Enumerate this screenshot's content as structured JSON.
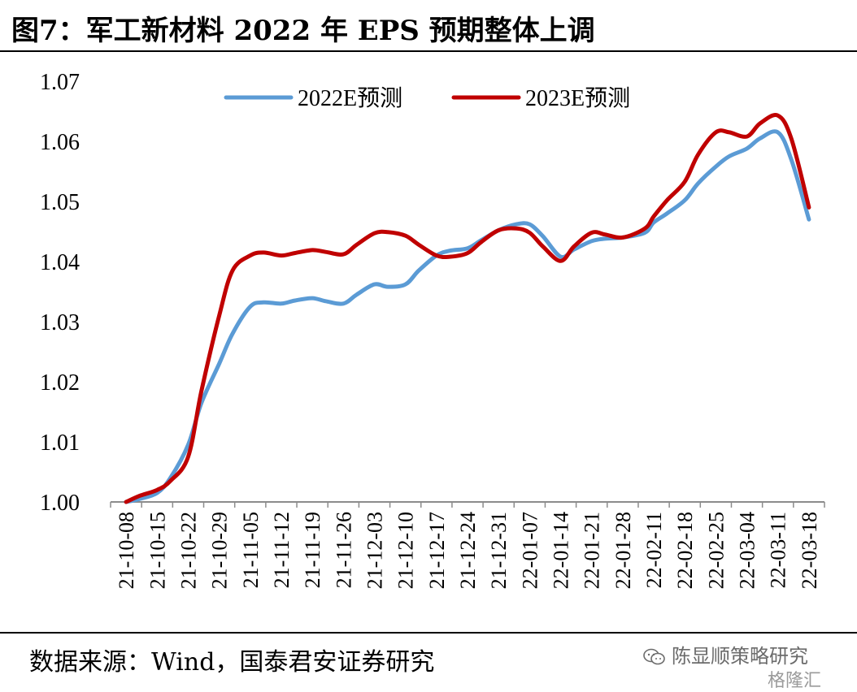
{
  "title": "图7：军工新材料 2022 年 EPS 预期整体上调",
  "source": "数据来源：Wind，国泰君安证券研究",
  "watermark": {
    "account": "陈显顺策略研究",
    "brand": "格隆汇",
    "icon": "wechat-icon"
  },
  "colors": {
    "series_2022": "#5B9BD5",
    "series_2023": "#C00000"
  },
  "chart_data": {
    "type": "line",
    "ylim": [
      1.0,
      1.07
    ],
    "yticks": [
      "1.00",
      "1.01",
      "1.02",
      "1.03",
      "1.04",
      "1.05",
      "1.06",
      "1.07"
    ],
    "x_tick_labels": [
      "21-10-08",
      "21-10-15",
      "21-10-22",
      "21-10-29",
      "21-11-05",
      "21-11-12",
      "21-11-19",
      "21-11-26",
      "21-12-03",
      "21-12-10",
      "21-12-17",
      "21-12-24",
      "21-12-31",
      "22-01-07",
      "22-01-14",
      "22-01-21",
      "22-01-28",
      "22-02-11",
      "22-02-18",
      "22-02-25",
      "22-03-04",
      "22-03-11",
      "22-03-18"
    ],
    "legend_position": "top",
    "grid": false,
    "series": [
      {
        "name": "2022E预测",
        "color": "#5B9BD5",
        "x": [
          "21-10-08",
          "21-10-11",
          "21-10-15",
          "21-10-18",
          "21-10-22",
          "21-10-25",
          "21-10-29",
          "21-11-01",
          "21-11-05",
          "21-11-08",
          "21-11-12",
          "21-11-15",
          "21-11-19",
          "21-11-22",
          "21-11-26",
          "21-11-29",
          "21-12-03",
          "21-12-06",
          "21-12-10",
          "21-12-13",
          "21-12-17",
          "21-12-20",
          "21-12-24",
          "21-12-27",
          "21-12-31",
          "22-01-04",
          "22-01-07",
          "22-01-10",
          "22-01-14",
          "22-01-17",
          "22-01-21",
          "22-01-24",
          "22-01-28",
          "22-02-07",
          "22-02-11",
          "22-02-14",
          "22-02-18",
          "22-02-21",
          "22-02-25",
          "22-02-28",
          "22-03-04",
          "22-03-07",
          "22-03-11",
          "22-03-14",
          "22-03-18"
        ],
        "values": [
          1.0,
          1.0005,
          1.0015,
          1.004,
          1.0095,
          1.0165,
          1.023,
          1.028,
          1.0325,
          1.0332,
          1.033,
          1.0335,
          1.0339,
          1.0334,
          1.033,
          1.0345,
          1.0362,
          1.0358,
          1.0362,
          1.0385,
          1.041,
          1.0418,
          1.0422,
          1.0435,
          1.0452,
          1.0462,
          1.0462,
          1.0442,
          1.0408,
          1.042,
          1.0434,
          1.0438,
          1.044,
          1.0448,
          1.0465,
          1.048,
          1.0502,
          1.053,
          1.0558,
          1.0575,
          1.0588,
          1.0605,
          1.0615,
          1.057,
          1.047
        ]
      },
      {
        "name": "2023E预测",
        "color": "#C00000",
        "x": [
          "21-10-08",
          "21-10-11",
          "21-10-15",
          "21-10-18",
          "21-10-22",
          "21-10-25",
          "21-10-29",
          "21-11-01",
          "21-11-05",
          "21-11-08",
          "21-11-12",
          "21-11-15",
          "21-11-19",
          "21-11-22",
          "21-11-26",
          "21-11-29",
          "21-12-03",
          "21-12-06",
          "21-12-10",
          "21-12-13",
          "21-12-17",
          "21-12-20",
          "21-12-24",
          "21-12-27",
          "21-12-31",
          "22-01-04",
          "22-01-07",
          "22-01-10",
          "22-01-14",
          "22-01-17",
          "22-01-21",
          "22-01-24",
          "22-01-28",
          "22-02-07",
          "22-02-11",
          "22-02-14",
          "22-02-18",
          "22-02-21",
          "22-02-25",
          "22-02-28",
          "22-03-04",
          "22-03-07",
          "22-03-11",
          "22-03-14",
          "22-03-18"
        ],
        "values": [
          1.0,
          1.001,
          1.002,
          1.0035,
          1.0075,
          1.0185,
          1.031,
          1.0385,
          1.041,
          1.0415,
          1.041,
          1.0414,
          1.0419,
          1.0416,
          1.0412,
          1.0428,
          1.0447,
          1.0449,
          1.0443,
          1.0428,
          1.041,
          1.0408,
          1.0414,
          1.0432,
          1.0452,
          1.0455,
          1.0448,
          1.0425,
          1.0401,
          1.0425,
          1.0448,
          1.0445,
          1.044,
          1.0455,
          1.0475,
          1.0502,
          1.0533,
          1.0578,
          1.0615,
          1.0615,
          1.0608,
          1.063,
          1.0643,
          1.0605,
          1.049
        ]
      }
    ]
  }
}
